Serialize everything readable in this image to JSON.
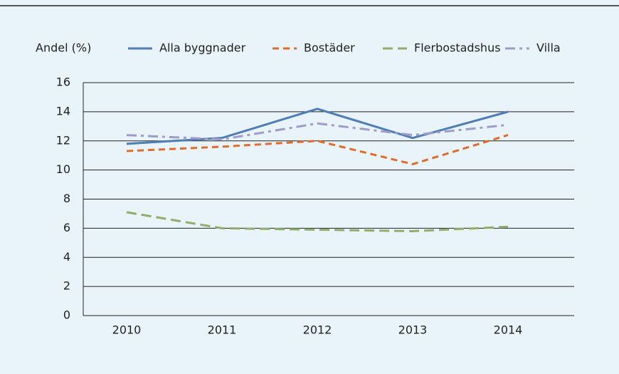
{
  "chart_data": {
    "type": "line",
    "ylabel": "Andel (%)",
    "categories": [
      "2010",
      "2011",
      "2012",
      "2013",
      "2014"
    ],
    "series": [
      {
        "name": "Alla byggnader",
        "color": "#4f7db8",
        "values": [
          11.8,
          12.2,
          14.2,
          12.2,
          14.0
        ]
      },
      {
        "name": "Bostäder",
        "color": "#e46a2b",
        "values": [
          11.3,
          11.6,
          12.0,
          10.4,
          12.4
        ]
      },
      {
        "name": "Flerbostadshus",
        "color": "#8fae6a",
        "values": [
          7.1,
          6.0,
          5.9,
          5.8,
          6.1
        ]
      },
      {
        "name": "Villa",
        "color": "#a09cc8",
        "values": [
          12.4,
          12.1,
          13.2,
          12.4,
          13.1
        ]
      }
    ],
    "ylim": [
      0,
      16
    ],
    "yticks": [
      0,
      2,
      4,
      6,
      8,
      10,
      12,
      14,
      16
    ],
    "grid": true
  }
}
